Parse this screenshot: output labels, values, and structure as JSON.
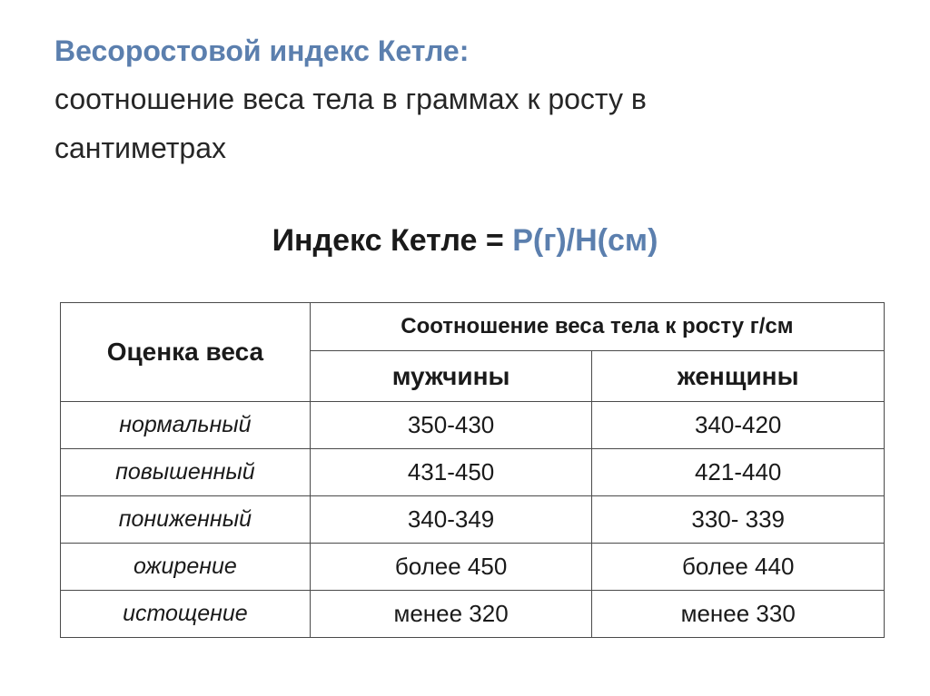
{
  "title": {
    "main": "Весоростовой индекс Кетле:",
    "sub_line1": "соотношение веса тела в граммах к росту в",
    "sub_line2": "сантиметрах"
  },
  "formula": {
    "label": "Индекс Кетле = ",
    "expression": "Р(г)/Н(см)"
  },
  "table": {
    "header_eval": "Оценка веса",
    "header_ratio": "Соотношение веса тела к росту  г/см",
    "header_men": "мужчины",
    "header_women": "женщины",
    "rows": [
      {
        "category": "нормальный",
        "men": "350-430",
        "women": "340-420"
      },
      {
        "category": "повышенный",
        "men": "431-450",
        "women": "421-440"
      },
      {
        "category": "пониженный",
        "men": "340-349",
        "women": "330- 339"
      },
      {
        "category": "ожирение",
        "men": "более 450",
        "women": "более 440"
      },
      {
        "category": "истощение",
        "men": "менее 320",
        "women": "менее 330"
      }
    ]
  }
}
